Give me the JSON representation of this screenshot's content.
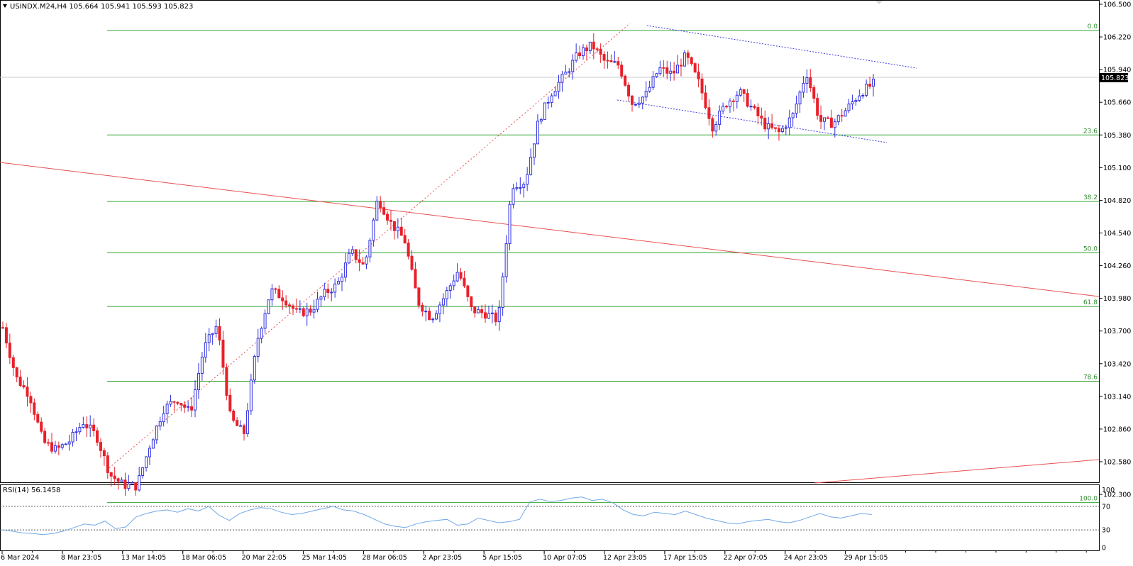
{
  "header": {
    "symbol_line": "USINDX.M24,H4  105.664 105.941 105.593 105.823"
  },
  "colors": {
    "bull": "#3030e0",
    "bear": "#e8202a",
    "fib": "#34a534",
    "trend": "#e85050",
    "channel": "#3a3ae0",
    "rsi": "#6fa8e8",
    "axis": "#000000"
  },
  "chart_data": {
    "type": "candlestick",
    "symbol": "USINDX.M24",
    "timeframe": "H4",
    "last_price": "105.823",
    "ylim": [
      102.18,
      106.5
    ],
    "y_ticks": [
      "106.500",
      "106.220",
      "105.940",
      "105.660",
      "105.380",
      "105.100",
      "104.820",
      "104.540",
      "104.260",
      "103.980",
      "103.700",
      "103.420",
      "103.140",
      "102.860",
      "102.580",
      "102.300"
    ],
    "x_ticks": [
      "6 Mar 2024",
      "8 Mar 23:05",
      "13 Mar 14:05",
      "18 Mar 06:05",
      "20 Mar 22:05",
      "25 Mar 14:05",
      "28 Mar 06:05",
      "2 Apr 23:05",
      "5 Apr 15:05",
      "10 Apr 07:05",
      "12 Apr 23:05",
      "17 Apr 15:05",
      "22 Apr 07:05",
      "24 Apr 23:05",
      "29 Apr 15:05"
    ],
    "price_path": [
      103.73,
      103.3,
      103.15,
      102.75,
      102.68,
      102.76,
      102.92,
      102.8,
      102.47,
      102.38,
      102.37,
      102.73,
      103.03,
      103.12,
      103.0,
      103.55,
      103.75,
      102.95,
      102.82,
      103.62,
      104.05,
      103.98,
      103.85,
      103.88,
      104.02,
      104.1,
      104.38,
      104.25,
      104.84,
      104.62,
      104.48,
      103.95,
      103.81,
      104.0,
      104.22,
      103.88,
      103.85,
      103.79,
      104.95,
      104.98,
      105.5,
      105.75,
      105.9,
      106.08,
      106.15,
      106.0,
      105.98,
      105.65,
      105.72,
      105.95,
      105.9,
      106.06,
      105.82,
      105.45,
      105.65,
      105.75,
      105.6,
      105.45,
      105.4,
      105.55,
      105.92,
      105.5,
      105.48,
      105.6,
      105.74,
      105.82
    ],
    "fibonacci": [
      {
        "label": "0.0",
        "price": 106.275
      },
      {
        "label": "23.6",
        "price": 105.38
      },
      {
        "label": "38.2",
        "price": 104.81
      },
      {
        "label": "50.0",
        "price": 104.37
      },
      {
        "label": "61.8",
        "price": 103.91
      },
      {
        "label": "78.6",
        "price": 103.27
      },
      {
        "label": "100.0",
        "price": 102.23
      }
    ],
    "rsi": {
      "label": "RSI(14) 56.1458",
      "levels": [
        "100",
        "70",
        "30",
        "0"
      ],
      "values": [
        30,
        28,
        25,
        24,
        22,
        24,
        28,
        34,
        40,
        38,
        45,
        32,
        35,
        52,
        58,
        62,
        64,
        60,
        66,
        62,
        70,
        55,
        46,
        58,
        64,
        68,
        66,
        60,
        56,
        58,
        62,
        66,
        70,
        64,
        62,
        56,
        48,
        40,
        36,
        34,
        40,
        44,
        46,
        48,
        38,
        40,
        50,
        46,
        42,
        44,
        48,
        78,
        82,
        78,
        80,
        84,
        86,
        80,
        82,
        76,
        64,
        56,
        54,
        60,
        58,
        56,
        62,
        56,
        50,
        46,
        42,
        40,
        44,
        46,
        48,
        44,
        42,
        46,
        52,
        58,
        52,
        50,
        54,
        58,
        56
      ]
    }
  }
}
